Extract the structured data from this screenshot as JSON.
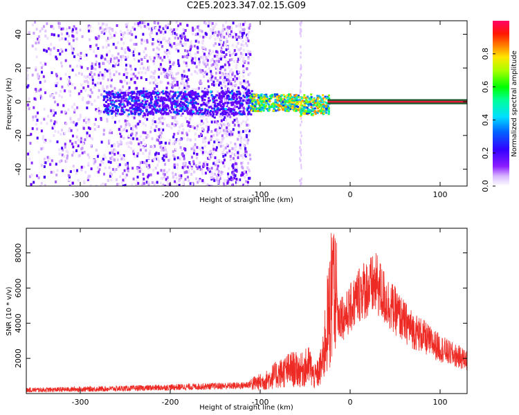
{
  "title": "C2E5.2023.347.02.15.G09",
  "colors": {
    "snr_line": "#ee2a24",
    "axis": "#000000",
    "background": "#ffffff",
    "centerline_dark": "#1f5a2a",
    "centerline_bright": "#e8173a"
  },
  "colorbar": {
    "label": "Normalized spectral amplitude",
    "ticks": [
      "0.0",
      "0.2",
      "0.4",
      "0.6",
      "0.8"
    ],
    "range": [
      0,
      1
    ],
    "colormap": "hsv-rainbow (white→violet→blue→cyan→green→yellow→orange→red→magenta)"
  },
  "chart_data": [
    {
      "type": "heatmap",
      "xlabel": "Height of straight line (km)",
      "ylabel": "Frequency (Hz)",
      "xlim": [
        -360,
        130
      ],
      "ylim": [
        -50,
        48
      ],
      "xticks": [
        "-300",
        "-200",
        "-100",
        "0",
        "100"
      ],
      "yticks": [
        "40",
        "20",
        "0",
        "-20",
        "-40"
      ],
      "description_values": {
        "noise_region_height_km": [
          -360,
          -115
        ],
        "strong_signal_height_km": [
          -110,
          -25
        ],
        "clean_tone_height_km": [
          -25,
          130
        ],
        "tone_frequency_hz": 0
      }
    },
    {
      "type": "line",
      "xlabel": "Height of straight line (km)",
      "ylabel": "SNR (10 * v/v)",
      "xlim": [
        -360,
        130
      ],
      "ylim": [
        0,
        9400
      ],
      "xticks": [
        "-300",
        "-200",
        "-100",
        "0",
        "100"
      ],
      "yticks": [
        "2000",
        "4000",
        "6000",
        "8000"
      ],
      "series": [
        {
          "x": [
            -360,
            -330,
            -300,
            -270,
            -240,
            -210,
            -180,
            -150,
            -120,
            -105,
            -95,
            -85,
            -75,
            -65,
            -55,
            -45,
            -40,
            -35,
            -30,
            -27,
            -24,
            -21,
            -19,
            -17,
            -15,
            -13,
            -10,
            -7,
            -4,
            0,
            5,
            10,
            15,
            20,
            25,
            30,
            35,
            40,
            50,
            60,
            70,
            80,
            90,
            100,
            110,
            120,
            130
          ],
          "y": [
            200,
            220,
            250,
            270,
            300,
            340,
            380,
            420,
            450,
            600,
            700,
            1000,
            1200,
            1400,
            1300,
            1600,
            900,
            1200,
            1900,
            3500,
            4200,
            5500,
            7000,
            3200,
            5200,
            4200,
            4600,
            4300,
            4500,
            4800,
            5200,
            5700,
            5900,
            6000,
            6100,
            6200,
            5700,
            5300,
            4700,
            4100,
            3600,
            3300,
            2900,
            2600,
            2300,
            2100,
            1900
          ]
        }
      ]
    }
  ]
}
